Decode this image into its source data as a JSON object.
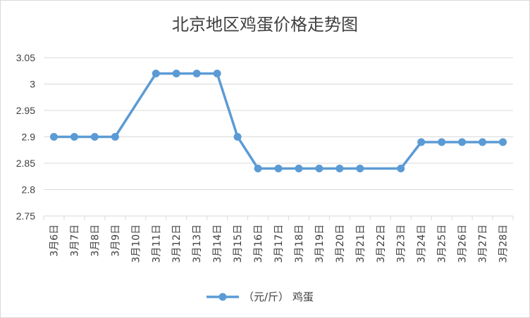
{
  "chart_data": {
    "type": "line",
    "title": "北京地区鸡蛋价格走势图",
    "xlabel": "",
    "ylabel": "",
    "categories": [
      "3月6日",
      "3月7日",
      "3月8日",
      "3月9日",
      "3月10日",
      "3月11日",
      "3月12日",
      "3月13日",
      "3月14日",
      "3月15日",
      "3月16日",
      "3月17日",
      "3月18日",
      "3月19日",
      "3月20日",
      "3月21日",
      "3月22日",
      "3月23日",
      "3月24日",
      "3月25日",
      "3月26日",
      "3月27日",
      "3月28日"
    ],
    "series": [
      {
        "name": "（元/斤） 鸡蛋",
        "values": [
          2.9,
          2.9,
          2.9,
          2.9,
          null,
          3.02,
          3.02,
          3.02,
          3.02,
          2.9,
          2.84,
          2.84,
          2.84,
          2.84,
          2.84,
          2.84,
          null,
          2.84,
          2.89,
          2.89,
          2.89,
          2.89,
          2.89
        ],
        "color": "#5b9bd5"
      }
    ],
    "ylim": [
      2.75,
      3.05
    ],
    "yticks": [
      "2.75",
      "2.8",
      "2.85",
      "2.9",
      "2.95",
      "3",
      "3.05"
    ],
    "grid": true,
    "legend_position": "bottom"
  }
}
